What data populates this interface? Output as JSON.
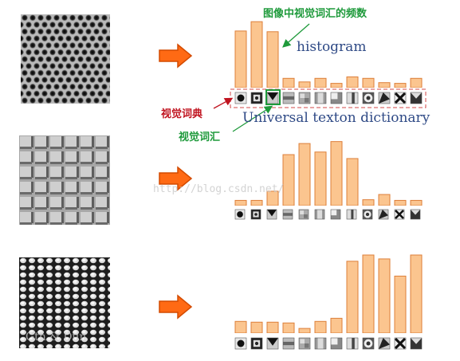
{
  "annotations": {
    "freq_title": "图像中视觉词汇的频数",
    "histogram": "histogram",
    "dict_label": "视觉词典",
    "word_label": "视觉词汇",
    "universal": "Universal texton dictionary",
    "watermark": "http://blog.csdn.net/"
  },
  "colors": {
    "bar_fill": "#fbc58f",
    "bar_stroke": "#dd7f3a",
    "arrow_fill": "#ff6a14",
    "arrow_stroke": "#d44b00",
    "green": "#1e9a3b",
    "red": "#c0131f",
    "blue": "#2f4a86"
  },
  "chart_data": [
    {
      "type": "bar",
      "categories": [
        "1",
        "2",
        "3",
        "4",
        "5",
        "6",
        "7",
        "8",
        "9",
        "10",
        "11",
        "12"
      ],
      "values": [
        0.79,
        0.92,
        0.78,
        0.13,
        0.08,
        0.13,
        0.06,
        0.15,
        0.13,
        0.07,
        0.06,
        0.13
      ],
      "ylim": [
        0,
        1
      ]
    },
    {
      "type": "bar",
      "categories": [
        "1",
        "2",
        "3",
        "4",
        "5",
        "6",
        "7",
        "8",
        "9",
        "10",
        "11",
        "12"
      ],
      "values": [
        0.08,
        0.08,
        0.22,
        0.78,
        0.95,
        0.82,
        0.98,
        0.72,
        0.09,
        0.17,
        0.08,
        0.08
      ],
      "ylim": [
        0,
        1
      ]
    },
    {
      "type": "bar",
      "categories": [
        "1",
        "2",
        "3",
        "4",
        "5",
        "6",
        "7",
        "8",
        "9",
        "10",
        "11",
        "12"
      ],
      "values": [
        0.15,
        0.14,
        0.14,
        0.13,
        0.06,
        0.15,
        0.19,
        0.92,
        1.0,
        0.95,
        0.73,
        1.0
      ],
      "ylim": [
        0,
        1
      ]
    }
  ]
}
